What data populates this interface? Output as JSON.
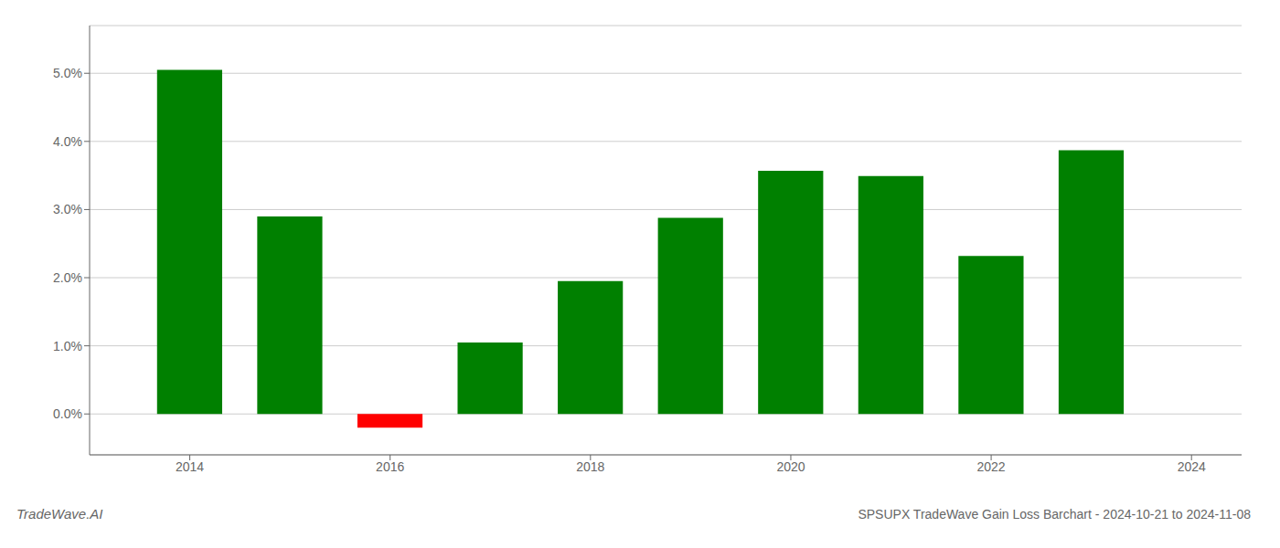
{
  "chart_data": {
    "type": "bar",
    "title": "SPSUPX TradeWave Gain Loss Barchart - 2024-10-21 to 2024-11-08",
    "annotations": [
      "TradeWave.AI"
    ],
    "x": [
      2014,
      2015,
      2016,
      2017,
      2018,
      2019,
      2020,
      2021,
      2022,
      2023
    ],
    "values": [
      0.0505,
      0.029,
      -0.002,
      0.0105,
      0.0195,
      0.0288,
      0.0357,
      0.0349,
      0.0232,
      0.0387
    ],
    "colors": [
      "#008000",
      "#008000",
      "#ff0000",
      "#008000",
      "#008000",
      "#008000",
      "#008000",
      "#008000",
      "#008000",
      "#008000"
    ],
    "xlim": [
      2013.0,
      2024.5
    ],
    "xticks": [
      2014,
      2016,
      2018,
      2020,
      2022,
      2024
    ],
    "ylim": [
      -0.006,
      0.057
    ],
    "yticks": [
      {
        "value": 0.0,
        "label": "0.0%"
      },
      {
        "value": 0.01,
        "label": "1.0%"
      },
      {
        "value": 0.02,
        "label": "2.0%"
      },
      {
        "value": 0.03,
        "label": "3.0%"
      },
      {
        "value": 0.04,
        "label": "4.0%"
      },
      {
        "value": 0.05,
        "label": "5.0%"
      }
    ],
    "grid": true
  }
}
